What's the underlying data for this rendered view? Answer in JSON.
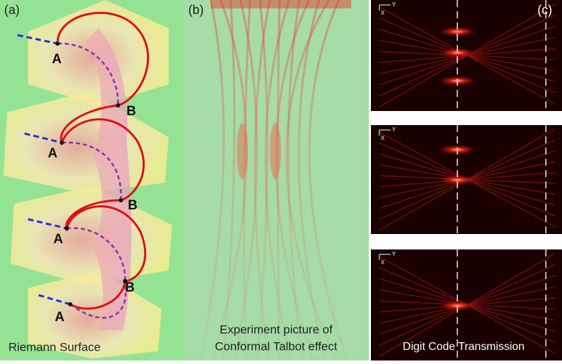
{
  "panels": [
    {
      "label": "(a)",
      "caption": "Riemann Surface",
      "points": [
        "A",
        "B",
        "A",
        "B",
        "A",
        "B",
        "A"
      ]
    },
    {
      "label": "(b)",
      "caption": [
        "Experiment picture of",
        "Conformal Talbot effect"
      ]
    },
    {
      "label": "(c)",
      "caption": "Digit Code Transmission",
      "axes": [
        {
          "x": "X",
          "y": "Y"
        },
        {
          "x": "X",
          "y": "Y"
        },
        {
          "x": "X",
          "y": "Y"
        }
      ]
    }
  ]
}
